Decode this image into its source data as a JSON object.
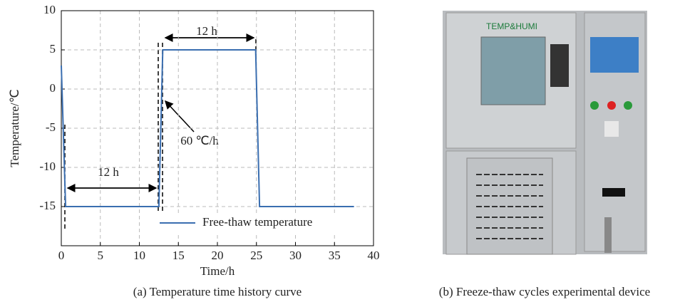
{
  "chart_data": {
    "type": "line",
    "x": [
      0,
      0.55,
      12.5,
      13,
      24.9,
      25.4,
      37.5
    ],
    "series": [
      {
        "name": "Free-thaw temperature",
        "color": "#3a6eb0",
        "values": [
          3,
          -15,
          -15,
          5,
          5,
          -15,
          -15
        ]
      }
    ],
    "xlim": [
      0,
      40
    ],
    "xticks": [
      0,
      5,
      10,
      15,
      20,
      25,
      30,
      35,
      40
    ],
    "ylim": [
      -20,
      10
    ],
    "yticks": [
      -15,
      -10,
      -5,
      0,
      5,
      10
    ],
    "grid": true,
    "xlabel": "Time/h",
    "ylabel": "Temperature/℃",
    "legend": "lower right",
    "annotations": [
      "12 h",
      "12 h",
      "60 ℃/h"
    ],
    "caption": "(a) Temperature time history curve"
  },
  "photo": {
    "label": "TEMP&HUMI",
    "caption": "(b) Freeze-thaw cycles experimental device"
  }
}
